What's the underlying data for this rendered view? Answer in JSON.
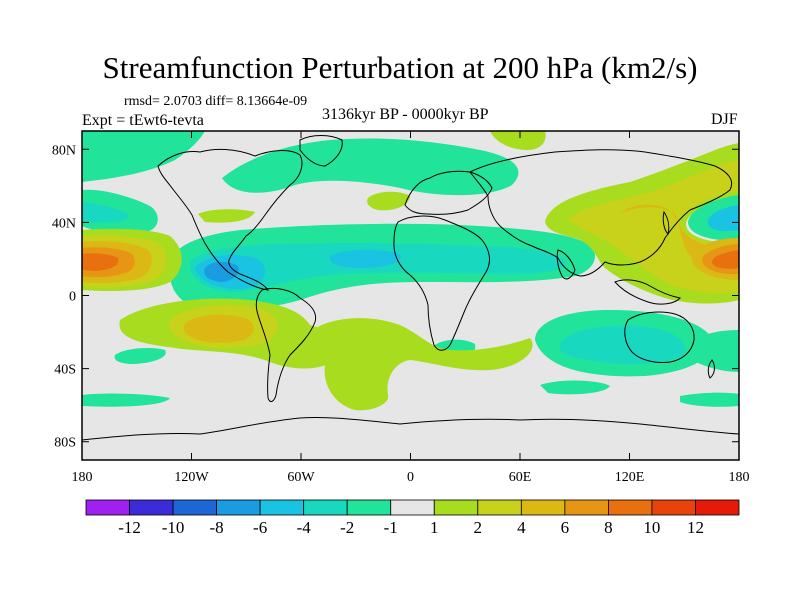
{
  "title": "Streamfunction Perturbation at 200 hPa (km2/s)",
  "stats": "rmsd= 2.0703 diff= 8.13664e-09",
  "experiment": "Expt = tEwt6-tevta",
  "period": "3136kyr BP - 0000kyr BP",
  "season": "DJF",
  "lat_ticks": [
    {
      "label": "80N",
      "value": 80
    },
    {
      "label": "40N",
      "value": 40
    },
    {
      "label": "0",
      "value": 0
    },
    {
      "label": "40S",
      "value": -40
    },
    {
      "label": "80S",
      "value": -80
    }
  ],
  "lon_ticks": [
    {
      "label": "180",
      "value": -180
    },
    {
      "label": "120W",
      "value": -120
    },
    {
      "label": "60W",
      "value": -60
    },
    {
      "label": "0",
      "value": 0
    },
    {
      "label": "60E",
      "value": 60
    },
    {
      "label": "120E",
      "value": 120
    },
    {
      "label": "180",
      "value": 180
    }
  ],
  "colorbar": {
    "labels": [
      "-12",
      "-10",
      "-8",
      "-6",
      "-4",
      "-2",
      "-1",
      "1",
      "2",
      "4",
      "6",
      "8",
      "10",
      "12"
    ],
    "colors": [
      "#a020f0",
      "#3c2bd8",
      "#1e66d6",
      "#1a9de0",
      "#19c3e1",
      "#19d8c0",
      "#22e39a",
      "#e6e6e6",
      "#a8dc1e",
      "#c8d21a",
      "#dcb814",
      "#e69614",
      "#e8700f",
      "#e8420d",
      "#e61a0a"
    ]
  },
  "colors": {
    "background_field": "#e6e6e6",
    "coastline": "#000000"
  }
}
